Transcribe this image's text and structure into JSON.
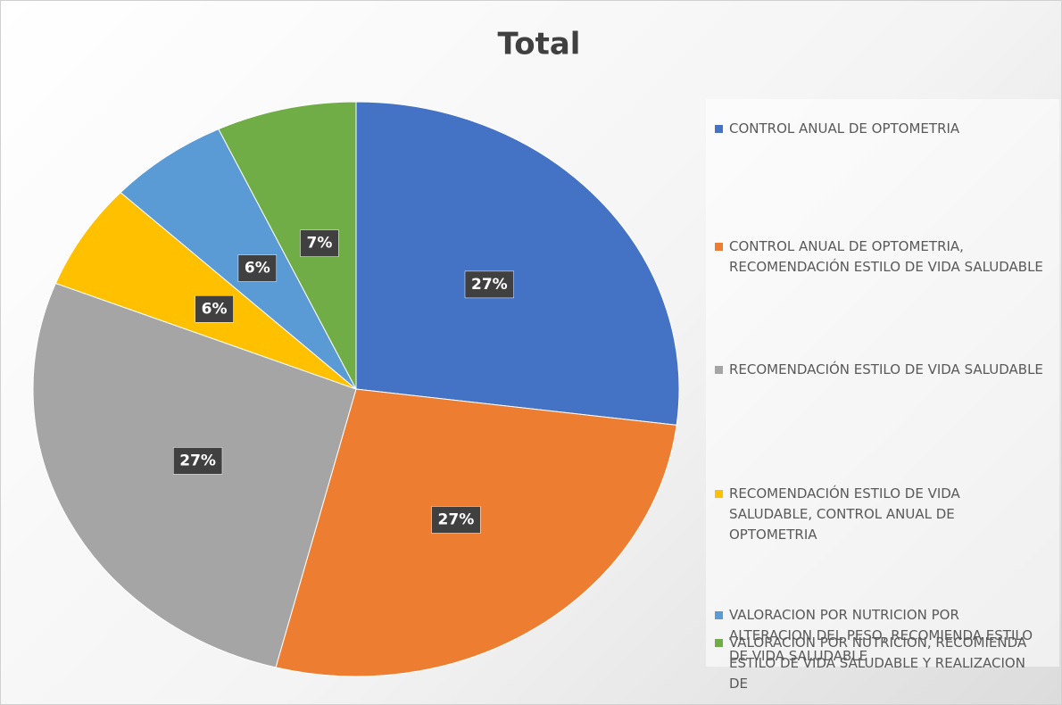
{
  "chart_data": {
    "type": "pie",
    "title": "Total",
    "categories": [
      "CONTROL ANUAL DE OPTOMETRIA",
      "CONTROL ANUAL DE OPTOMETRIA, RECOMENDACIÓN ESTILO DE VIDA SALUDABLE",
      "RECOMENDACIÓN ESTILO DE VIDA SALUDABLE",
      "RECOMENDACIÓN ESTILO DE VIDA SALUDABLE, CONTROL ANUAL DE OPTOMETRIA",
      "VALORACION POR NUTRICION POR ALTERACION DEL PESO, RECOMIENDA ESTILO DE VIDA SALUDABLE",
      "VALORACION POR NUTRICION, RECOMIENDA ESTILO DE VIDA SALUDABLE Y REALIZACION DE"
    ],
    "values": [
      27,
      27,
      27,
      6,
      6,
      7
    ],
    "value_labels": [
      "27%",
      "27%",
      "27%",
      "6%",
      "6%",
      "7%"
    ],
    "colors": [
      "#4472c4",
      "#ed7d31",
      "#a5a5a5",
      "#ffc000",
      "#5b9bd5",
      "#70ad47"
    ],
    "legend": "right"
  }
}
